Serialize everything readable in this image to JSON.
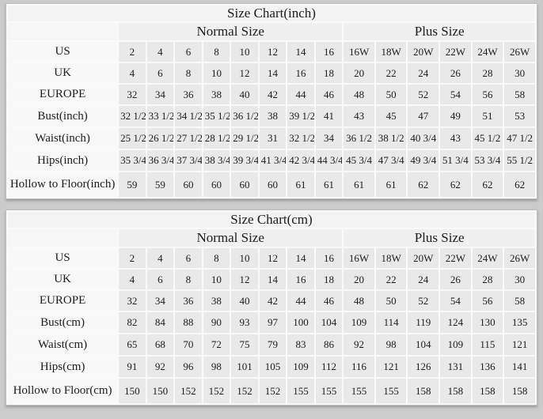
{
  "tables": [
    {
      "title": "Size Chart(inch)",
      "groups": {
        "normal": "Normal Size",
        "plus": "Plus Size"
      },
      "rows": [
        {
          "label": "US",
          "kind": "size",
          "normal": [
            "2",
            "4",
            "6",
            "8",
            "10",
            "12",
            "14",
            "16"
          ],
          "plus": [
            "16W",
            "18W",
            "20W",
            "22W",
            "24W",
            "26W"
          ]
        },
        {
          "label": "UK",
          "kind": "size",
          "normal": [
            "4",
            "6",
            "8",
            "10",
            "12",
            "14",
            "16",
            "18"
          ],
          "plus": [
            "20",
            "22",
            "24",
            "26",
            "28",
            "30"
          ]
        },
        {
          "label": "EUROPE",
          "kind": "size",
          "normal": [
            "32",
            "34",
            "36",
            "38",
            "40",
            "42",
            "44",
            "46"
          ],
          "plus": [
            "48",
            "50",
            "52",
            "54",
            "56",
            "58"
          ]
        },
        {
          "label": "Bust(inch)",
          "kind": "measure",
          "normal": [
            "32 1/2",
            "33 1/2",
            "34 1/2",
            "35 1/2",
            "36 1/2",
            "38",
            "39 1/2",
            "41"
          ],
          "plus": [
            "43",
            "45",
            "47",
            "49",
            "51",
            "53"
          ]
        },
        {
          "label": "Waist(inch)",
          "kind": "measure",
          "normal": [
            "25 1/2",
            "26 1/2",
            "27 1/2",
            "28 1/2",
            "29 1/2",
            "31",
            "32 1/2",
            "34"
          ],
          "plus": [
            "36 1/2",
            "38 1/2",
            "40 3/4",
            "43",
            "45 1/2",
            "47 1/2"
          ]
        },
        {
          "label": "Hips(inch)",
          "kind": "measure",
          "normal": [
            "35 3/4",
            "36 3/4",
            "37 3/4",
            "38 3/4",
            "39 3/4",
            "41 3/4",
            "42 3/4",
            "44 3/4"
          ],
          "plus": [
            "45 3/4",
            "47 3/4",
            "49 3/4",
            "51 3/4",
            "53 3/4",
            "55 1/2"
          ]
        },
        {
          "label": "Hollow to Floor(inch)",
          "kind": "hollow",
          "normal": [
            "59",
            "59",
            "60",
            "60",
            "60",
            "60",
            "61",
            "61"
          ],
          "plus": [
            "61",
            "61",
            "62",
            "62",
            "62",
            "62"
          ]
        }
      ]
    },
    {
      "title": "Size Chart(cm)",
      "groups": {
        "normal": "Normal Size",
        "plus": "Plus Size"
      },
      "rows": [
        {
          "label": "US",
          "kind": "size",
          "normal": [
            "2",
            "4",
            "6",
            "8",
            "10",
            "12",
            "14",
            "16"
          ],
          "plus": [
            "16W",
            "18W",
            "20W",
            "22W",
            "24W",
            "26W"
          ]
        },
        {
          "label": "UK",
          "kind": "size",
          "normal": [
            "4",
            "6",
            "8",
            "10",
            "12",
            "14",
            "16",
            "18"
          ],
          "plus": [
            "20",
            "22",
            "24",
            "26",
            "28",
            "30"
          ]
        },
        {
          "label": "EUROPE",
          "kind": "size",
          "normal": [
            "32",
            "34",
            "36",
            "38",
            "40",
            "42",
            "44",
            "46"
          ],
          "plus": [
            "48",
            "50",
            "52",
            "54",
            "56",
            "58"
          ]
        },
        {
          "label": "Bust(cm)",
          "kind": "measure",
          "normal": [
            "82",
            "84",
            "88",
            "90",
            "93",
            "97",
            "100",
            "104"
          ],
          "plus": [
            "109",
            "114",
            "119",
            "124",
            "130",
            "135"
          ]
        },
        {
          "label": "Waist(cm)",
          "kind": "measure",
          "normal": [
            "65",
            "68",
            "70",
            "72",
            "75",
            "79",
            "83",
            "86"
          ],
          "plus": [
            "92",
            "98",
            "104",
            "109",
            "115",
            "121"
          ]
        },
        {
          "label": "Hips(cm)",
          "kind": "measure",
          "normal": [
            "91",
            "92",
            "96",
            "98",
            "101",
            "105",
            "109",
            "112"
          ],
          "plus": [
            "116",
            "121",
            "126",
            "131",
            "136",
            "141"
          ]
        },
        {
          "label": "Hollow to Floor(cm)",
          "kind": "hollow",
          "normal": [
            "150",
            "150",
            "152",
            "152",
            "152",
            "152",
            "155",
            "155"
          ],
          "plus": [
            "155",
            "155",
            "158",
            "158",
            "158",
            "158"
          ]
        }
      ]
    }
  ],
  "layout_colors": {
    "page_background": "#cbcbcb",
    "cell_background": "#e9e9e9",
    "label_background": "#f8f8f8"
  }
}
